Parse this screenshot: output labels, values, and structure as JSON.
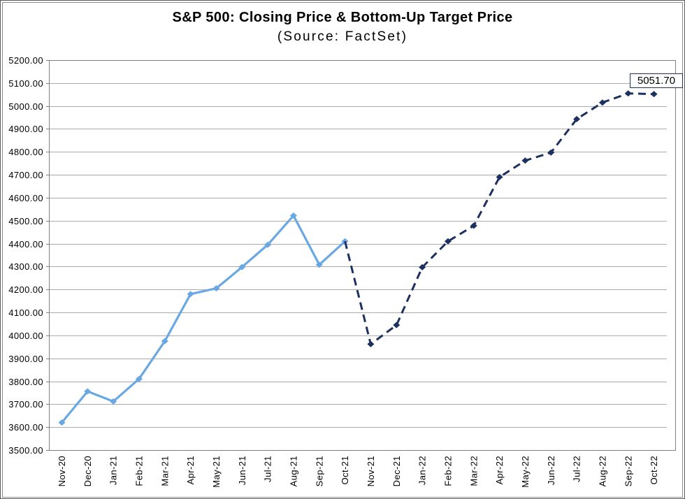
{
  "chart_data": {
    "type": "line",
    "title": "S&P 500: Closing Price & Bottom-Up Target Price",
    "subtitle": "(Source: FactSet)",
    "categories": [
      "Nov-20",
      "Dec-20",
      "Jan-21",
      "Feb-21",
      "Mar-21",
      "Apr-21",
      "May-21",
      "Jun-21",
      "Jul-21",
      "Aug-21",
      "Sep-21",
      "Oct-21",
      "Nov-21",
      "Dec-21",
      "Jan-22",
      "Feb-22",
      "Mar-22",
      "Apr-22",
      "May-22",
      "Jun-22",
      "Jul-22",
      "Aug-22",
      "Sep-22",
      "Oct-22"
    ],
    "series": [
      {
        "name": "Closing Price",
        "line_style": "solid",
        "color": "#69A8E3",
        "marker": "diamond",
        "values": [
          3620,
          3756,
          3712,
          3810,
          3975,
          4180,
          4205,
          4298,
          4395,
          4522,
          4308,
          4410,
          null,
          null,
          null,
          null,
          null,
          null,
          null,
          null,
          null,
          null,
          null,
          null
        ]
      },
      {
        "name": "Bottom-Up Target Price",
        "line_style": "dashed",
        "color": "#1D3160",
        "marker": "diamond",
        "marker_skip_first": true,
        "values": [
          null,
          null,
          null,
          null,
          null,
          null,
          null,
          null,
          null,
          null,
          null,
          4410,
          3962,
          4045,
          4297,
          4410,
          4478,
          4690,
          4762,
          4797,
          4943,
          5015,
          5055,
          5051.7
        ]
      }
    ],
    "ylim": [
      3500,
      5200
    ],
    "y_step": 100,
    "y_tick_labels": [
      "3500.00",
      "3600.00",
      "3700.00",
      "3800.00",
      "3900.00",
      "4000.00",
      "4100.00",
      "4200.00",
      "4300.00",
      "4400.00",
      "4500.00",
      "4600.00",
      "4700.00",
      "4800.00",
      "4900.00",
      "5000.00",
      "5100.00",
      "5200.00"
    ],
    "grid": true,
    "legend_position": "none",
    "annotation": {
      "text": "5051.70",
      "series": "Bottom-Up Target Price",
      "category": "Oct-22"
    }
  },
  "colors": {
    "closing_line": "#69A8E3",
    "target_line": "#1D3160",
    "gridline": "#ABABAB",
    "plot_border": "#808080",
    "background": "#FFFFFF",
    "annotation_border": "#1D3160",
    "text": "#000000"
  }
}
